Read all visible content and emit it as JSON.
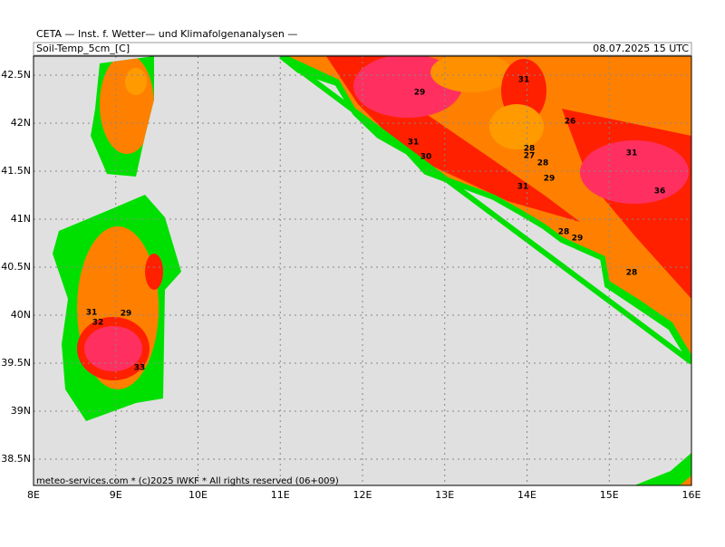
{
  "header": {
    "title": "CETA — Inst. f. Wetter— und Klimafolgenanalysen —",
    "field": "Soil-Temp_5cm_[C]",
    "valid": "08.07.2025 15 UTC"
  },
  "axes": {
    "lat": [
      "42.5N",
      "42N",
      "41.5N",
      "41N",
      "40.5N",
      "40N",
      "39.5N",
      "39N",
      "38.5N"
    ],
    "lon": [
      "8E",
      "9E",
      "10E",
      "11E",
      "12E",
      "13E",
      "14E",
      "15E",
      "16E"
    ]
  },
  "contour_labels": [
    29,
    31,
    30,
    31,
    28,
    27,
    28,
    29,
    31,
    26,
    31,
    36,
    28,
    29,
    28,
    31,
    32,
    29,
    33
  ],
  "footer": "meteo-services.com * (c)2025 IWKF * All rights reserved (06+009)"
}
